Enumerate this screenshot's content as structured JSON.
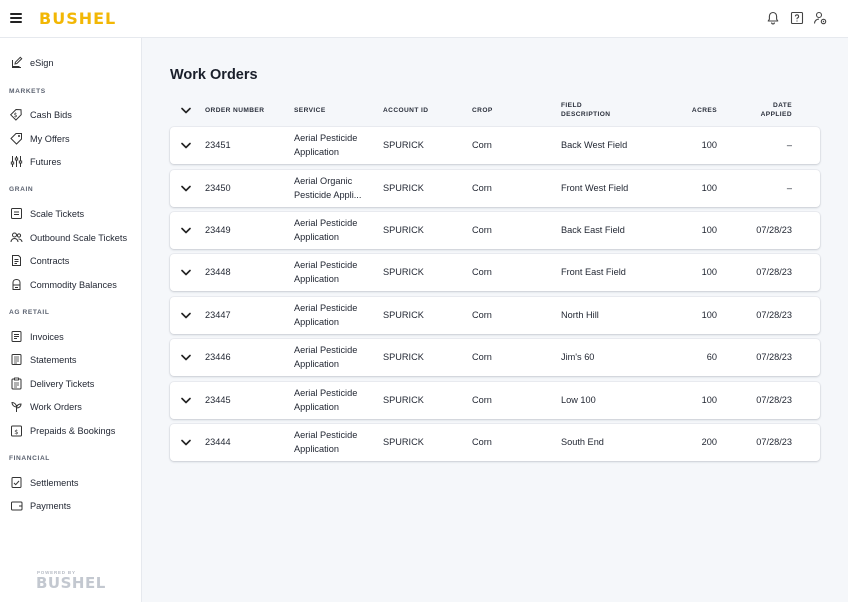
{
  "header": {
    "brand": "BUSHEL"
  },
  "sidebar": {
    "top_items": [
      {
        "label": "eSign",
        "icon": "pen-edit-icon"
      }
    ],
    "sections": [
      {
        "title": "MARKETS",
        "items": [
          {
            "label": "Cash Bids",
            "icon": "dollar-tag-icon"
          },
          {
            "label": "My Offers",
            "icon": "tag-icon"
          },
          {
            "label": "Futures",
            "icon": "sliders-icon"
          }
        ]
      },
      {
        "title": "GRAIN",
        "items": [
          {
            "label": "Scale Tickets",
            "icon": "scale-ticket-icon"
          },
          {
            "label": "Outbound Scale Tickets",
            "icon": "people-icon"
          },
          {
            "label": "Contracts",
            "icon": "contract-icon"
          },
          {
            "label": "Commodity Balances",
            "icon": "silo-icon"
          }
        ]
      },
      {
        "title": "AG RETAIL",
        "items": [
          {
            "label": "Invoices",
            "icon": "invoice-icon"
          },
          {
            "label": "Statements",
            "icon": "statement-icon"
          },
          {
            "label": "Delivery Tickets",
            "icon": "clipboard-icon"
          },
          {
            "label": "Work Orders",
            "icon": "plant-icon"
          },
          {
            "label": "Prepaids & Bookings",
            "icon": "prepaid-icon"
          }
        ]
      },
      {
        "title": "FINANCIAL",
        "items": [
          {
            "label": "Settlements",
            "icon": "checklist-icon"
          },
          {
            "label": "Payments",
            "icon": "wallet-icon"
          }
        ]
      }
    ],
    "powered_by": "POWERED BY",
    "powered_brand": "BUSHEL"
  },
  "main": {
    "title": "Work Orders",
    "columns": {
      "order_number": "ORDER NUMBER",
      "service": "SERVICE",
      "account_id": "ACCOUNT ID",
      "crop": "CROP",
      "field_description_1": "FIELD",
      "field_description_2": "DESCRIPTION",
      "acres": "ACRES",
      "date_applied_1": "DATE",
      "date_applied_2": "APPLIED"
    },
    "rows": [
      {
        "order": "23451",
        "service": "Aerial Pesticide Application",
        "account": "SPURICK",
        "crop": "Corn",
        "field": "Back West Field",
        "acres": "100",
        "date": "–"
      },
      {
        "order": "23450",
        "service": "Aerial Organic Pesticide Appli...",
        "account": "SPURICK",
        "crop": "Corn",
        "field": "Front West Field",
        "acres": "100",
        "date": "–"
      },
      {
        "order": "23449",
        "service": "Aerial Pesticide Application",
        "account": "SPURICK",
        "crop": "Corn",
        "field": "Back East Field",
        "acres": "100",
        "date": "07/28/23"
      },
      {
        "order": "23448",
        "service": "Aerial Pesticide Application",
        "account": "SPURICK",
        "crop": "Corn",
        "field": "Front East Field",
        "acres": "100",
        "date": "07/28/23"
      },
      {
        "order": "23447",
        "service": "Aerial Pesticide Application",
        "account": "SPURICK",
        "crop": "Corn",
        "field": "North Hill",
        "acres": "100",
        "date": "07/28/23"
      },
      {
        "order": "23446",
        "service": "Aerial Pesticide Application",
        "account": "SPURICK",
        "crop": "Corn",
        "field": "Jim's 60",
        "acres": "60",
        "date": "07/28/23"
      },
      {
        "order": "23445",
        "service": "Aerial Pesticide Application",
        "account": "SPURICK",
        "crop": "Corn",
        "field": "Low 100",
        "acres": "100",
        "date": "07/28/23"
      },
      {
        "order": "23444",
        "service": "Aerial Pesticide Application",
        "account": "SPURICK",
        "crop": "Corn",
        "field": "South End",
        "acres": "200",
        "date": "07/28/23"
      }
    ]
  },
  "colors": {
    "brand": "#f2b705",
    "background": "#f5f7fa",
    "surface": "#ffffff"
  }
}
